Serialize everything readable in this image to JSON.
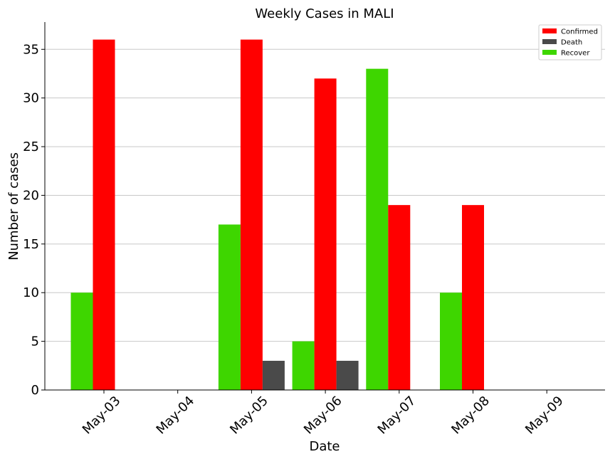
{
  "chart_data": {
    "type": "bar",
    "title": "Weekly Cases in MALI",
    "xlabel": "Date",
    "ylabel": "Number of cases",
    "categories": [
      "May-03",
      "May-04",
      "May-05",
      "May-06",
      "May-07",
      "May-08",
      "May-09"
    ],
    "series": [
      {
        "name": "Recover",
        "color": "#3ed600",
        "values": [
          10,
          0,
          17,
          5,
          33,
          10,
          0
        ]
      },
      {
        "name": "Confirmed",
        "color": "#ff0000",
        "values": [
          36,
          0,
          36,
          32,
          19,
          19,
          0
        ]
      },
      {
        "name": "Death",
        "color": "#4a4a4a",
        "values": [
          0,
          0,
          3,
          3,
          0,
          0,
          0
        ]
      }
    ],
    "legend_order": [
      "Confirmed",
      "Death",
      "Recover"
    ],
    "yticks": [
      0,
      5,
      10,
      15,
      20,
      25,
      30,
      35
    ],
    "ylim": [
      0,
      37.8
    ],
    "grid": "horizontal",
    "legend_position": "top-right"
  }
}
